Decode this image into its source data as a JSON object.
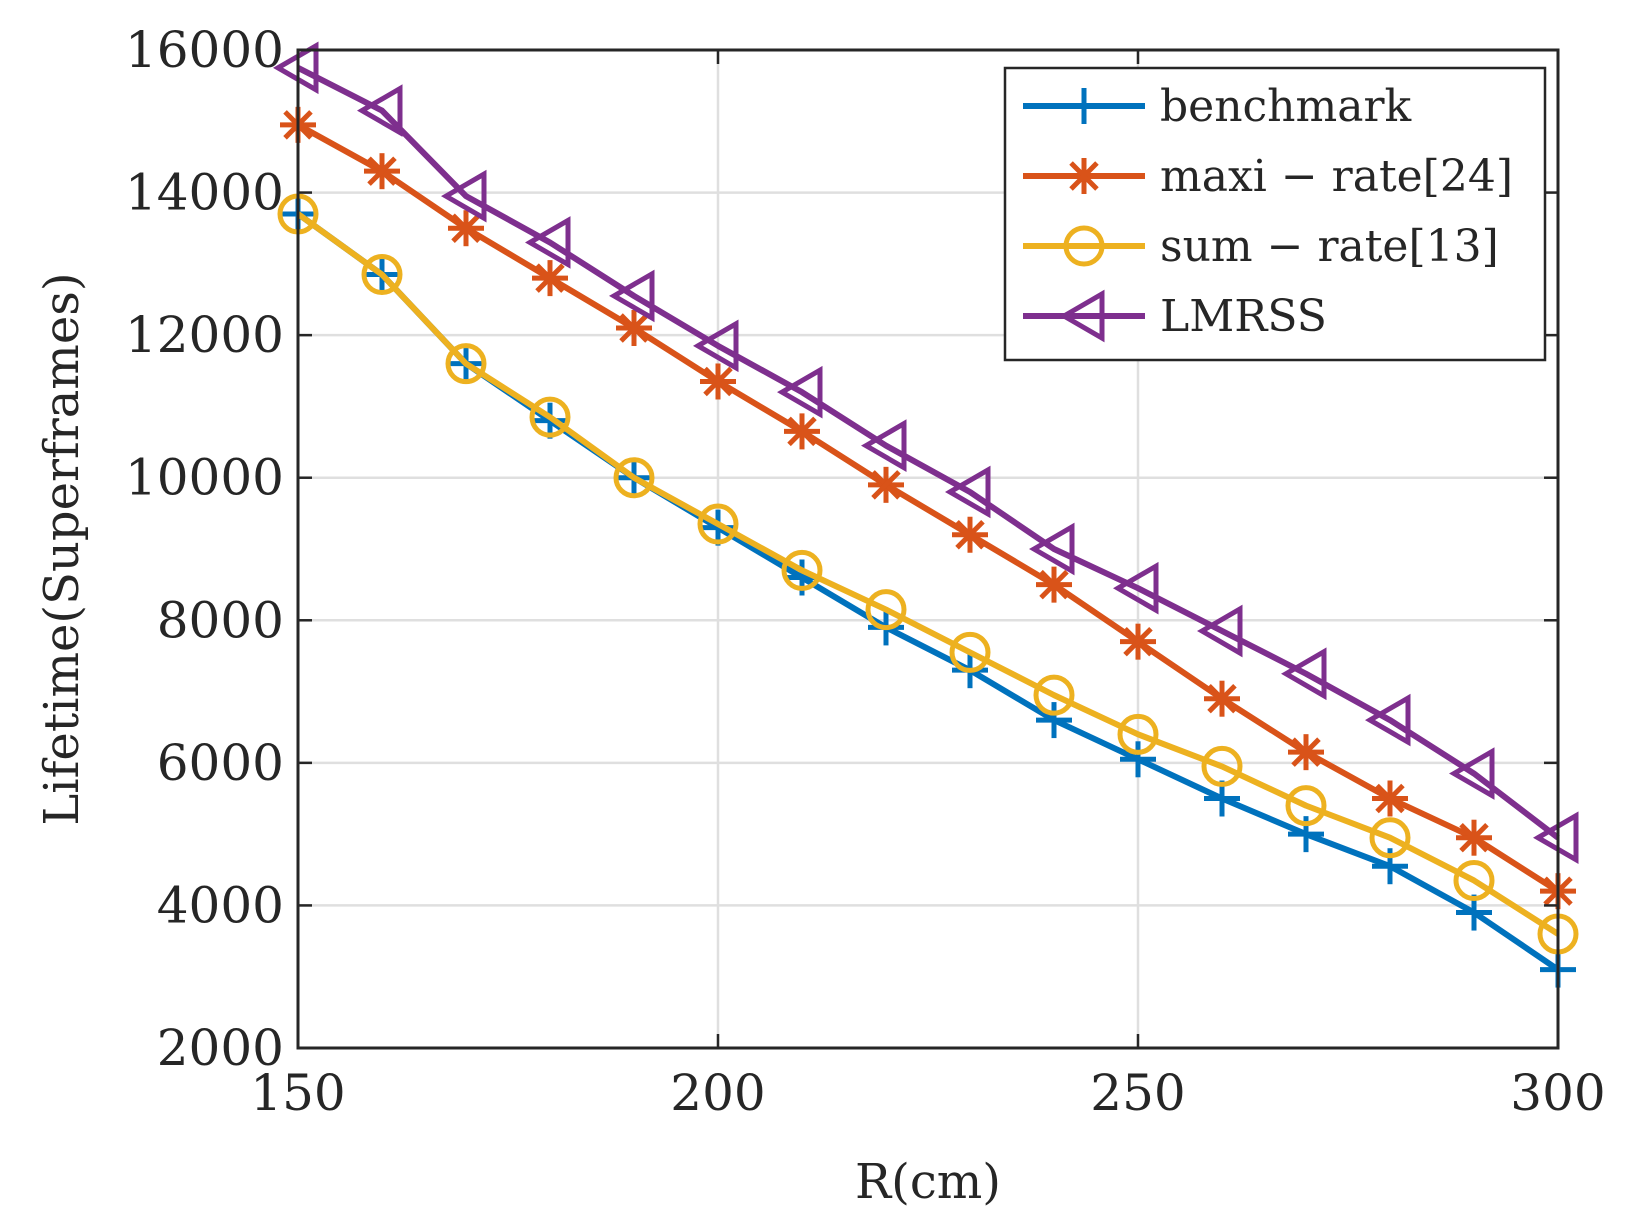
{
  "chart_data": {
    "type": "line",
    "title": "",
    "xlabel": "R(cm)",
    "ylabel": "Lifetime(Superframes)",
    "xlim": [
      150,
      300
    ],
    "ylim": [
      2000,
      16000
    ],
    "x_ticks": [
      150,
      200,
      250,
      300
    ],
    "y_ticks": [
      2000,
      4000,
      6000,
      8000,
      10000,
      12000,
      14000,
      16000
    ],
    "grid": true,
    "legend_position": "top-right",
    "x": [
      150,
      160,
      170,
      180,
      190,
      200,
      210,
      220,
      230,
      240,
      250,
      260,
      270,
      280,
      290,
      300
    ],
    "series": [
      {
        "name": "benchmark",
        "color": "#0072BD",
        "marker": "plus",
        "values": [
          13700,
          12850,
          11600,
          10800,
          10000,
          9300,
          8600,
          7900,
          7300,
          6600,
          6050,
          5500,
          5000,
          4550,
          3900,
          3100
        ]
      },
      {
        "name": "maxi − rate[24]",
        "color": "#D95319",
        "marker": "asterisk",
        "values": [
          14950,
          14300,
          13500,
          12800,
          12100,
          11350,
          10650,
          9900,
          9200,
          8500,
          7700,
          6900,
          6150,
          5500,
          4950,
          4200
        ]
      },
      {
        "name": "sum − rate[13]",
        "color": "#EDB120",
        "marker": "circle",
        "values": [
          13700,
          12850,
          11600,
          10850,
          10000,
          9350,
          8700,
          8150,
          7550,
          6950,
          6400,
          5950,
          5400,
          4950,
          4350,
          3600
        ]
      },
      {
        "name": "LMRSS",
        "color": "#7E2F8E",
        "marker": "triangle-left",
        "values": [
          15750,
          15150,
          13950,
          13300,
          12550,
          11850,
          11200,
          10450,
          9800,
          9000,
          8450,
          7850,
          7250,
          6600,
          5850,
          4950
        ]
      }
    ]
  }
}
